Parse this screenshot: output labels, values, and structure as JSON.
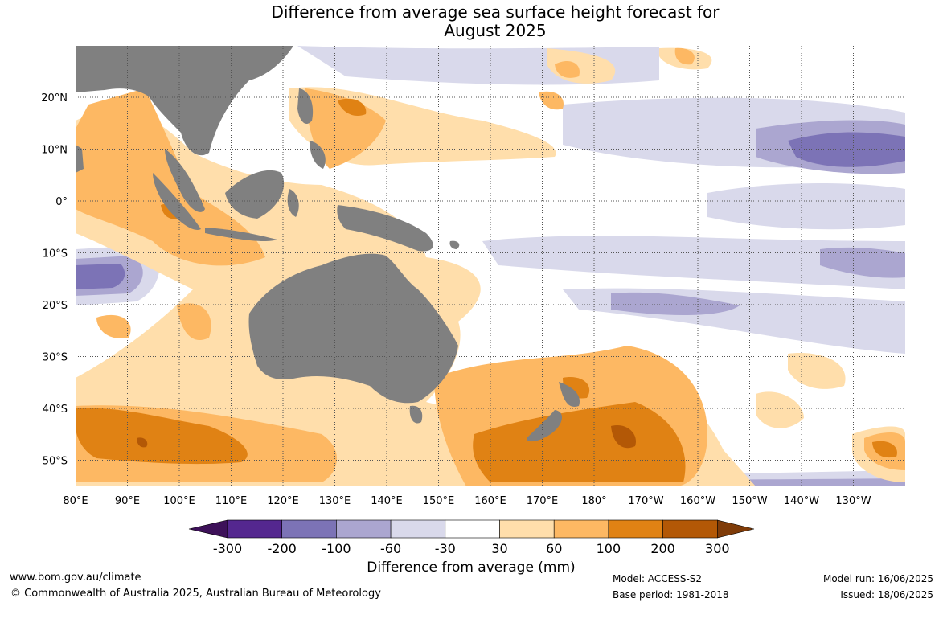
{
  "title": {
    "line1": "Difference from average sea surface height forecast for",
    "line2": "August 2025"
  },
  "map": {
    "lon_ticks": [
      "80°E",
      "90°E",
      "100°E",
      "110°E",
      "120°E",
      "130°E",
      "140°E",
      "150°E",
      "160°E",
      "170°E",
      "180°",
      "170°W",
      "160°W",
      "150°W",
      "140°W",
      "130°W"
    ],
    "lat_ticks": [
      "20°N",
      "10°N",
      "0°",
      "10°S",
      "20°S",
      "30°S",
      "40°S",
      "50°S"
    ],
    "land_color": "#808080"
  },
  "colorbar": {
    "labels": [
      "-300",
      "-200",
      "-100",
      "-60",
      "-30",
      "30",
      "60",
      "100",
      "200",
      "300"
    ],
    "colors": [
      "#3d1159",
      "#54278f",
      "#7c73b6",
      "#aba6d0",
      "#d9d9eb",
      "#ffffff",
      "#ffdeab",
      "#fdb863",
      "#e08214",
      "#b35806",
      "#7f3b08"
    ],
    "title": "Difference from average (mm)"
  },
  "footer": {
    "website": "www.bom.gov.au/climate",
    "copyright": "© Commonwealth of Australia 2025, Australian Bureau of Meteorology",
    "model": "Model: ACCESS-S2",
    "base_period": "Base period: 1981-2018",
    "model_run": "Model run: 16/06/2025",
    "issued": "Issued: 18/06/2025"
  }
}
